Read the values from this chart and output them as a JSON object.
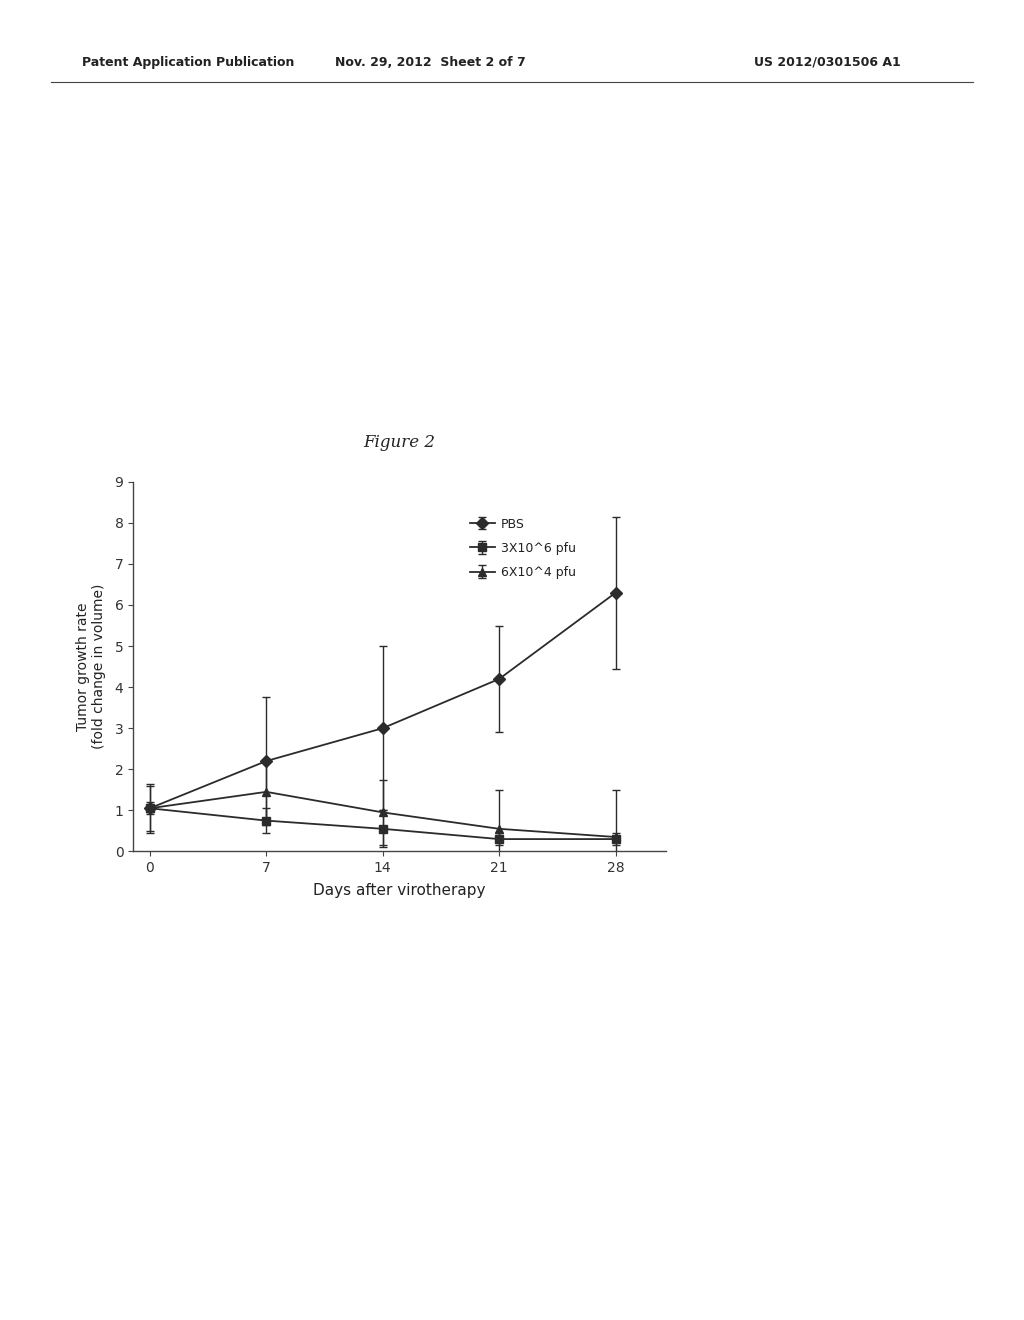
{
  "title": "Figure 2",
  "xlabel": "Days after virotherapy",
  "ylabel": "Tumor growth rate\n(fold change in volume)",
  "xlim": [
    -1,
    31
  ],
  "ylim": [
    0,
    9
  ],
  "yticks": [
    0,
    1,
    2,
    3,
    4,
    5,
    6,
    7,
    8,
    9
  ],
  "xticks": [
    0,
    7,
    14,
    21,
    28
  ],
  "days": [
    0,
    7,
    14,
    21,
    28
  ],
  "pbs_values": [
    1.05,
    2.2,
    3.0,
    4.2,
    6.3
  ],
  "pbs_errors": [
    0.6,
    1.55,
    2.0,
    1.3,
    1.85
  ],
  "high_dose_values": [
    1.05,
    0.75,
    0.55,
    0.3,
    0.3
  ],
  "high_dose_errors": [
    0.15,
    0.3,
    0.45,
    0.15,
    0.15
  ],
  "low_dose_values": [
    1.05,
    1.45,
    0.95,
    0.55,
    0.35
  ],
  "low_dose_errors": [
    0.55,
    0.75,
    0.8,
    0.95,
    1.15
  ],
  "legend_labels": [
    "PBS",
    "3X10^6 pfu",
    "6X10^4 pfu"
  ],
  "line_color": "#2b2b2b",
  "background_color": "#ffffff",
  "figsize": [
    10.24,
    13.2
  ],
  "dpi": 100,
  "header_left": "Patent Application Publication",
  "header_center": "Nov. 29, 2012  Sheet 2 of 7",
  "header_right": "US 2012/0301506 A1"
}
